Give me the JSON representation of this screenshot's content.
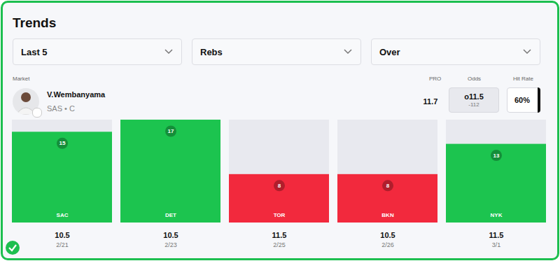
{
  "header": {
    "title": "Trends"
  },
  "filters": [
    "Last 5",
    "Rebs",
    "Over"
  ],
  "columns": {
    "market": "Market",
    "pro": "PRO",
    "odds": "Odds",
    "hit_rate": "Hit Rate"
  },
  "player": {
    "name": "V.Wembanyama",
    "team": "SAS • C",
    "pro": "11.7",
    "odds": "o11.5",
    "price": "-112",
    "hit_rate": "60%"
  },
  "chart_data": {
    "type": "bar",
    "categories": [
      "SAC",
      "DET",
      "TOR",
      "BKN",
      "NYK"
    ],
    "values": [
      15,
      17,
      8,
      8,
      13
    ],
    "colors": [
      "#1cc44f",
      "#1cc44f",
      "#f2293d",
      "#f2293d",
      "#1cc44f"
    ],
    "lines": [
      10.5,
      10.5,
      11.5,
      10.5,
      11.5
    ],
    "dates": [
      "2/21",
      "2/23",
      "2/25",
      "2/26",
      "3/1"
    ],
    "ylim": [
      0,
      17
    ],
    "data_labels": true,
    "tick_labels": false
  }
}
